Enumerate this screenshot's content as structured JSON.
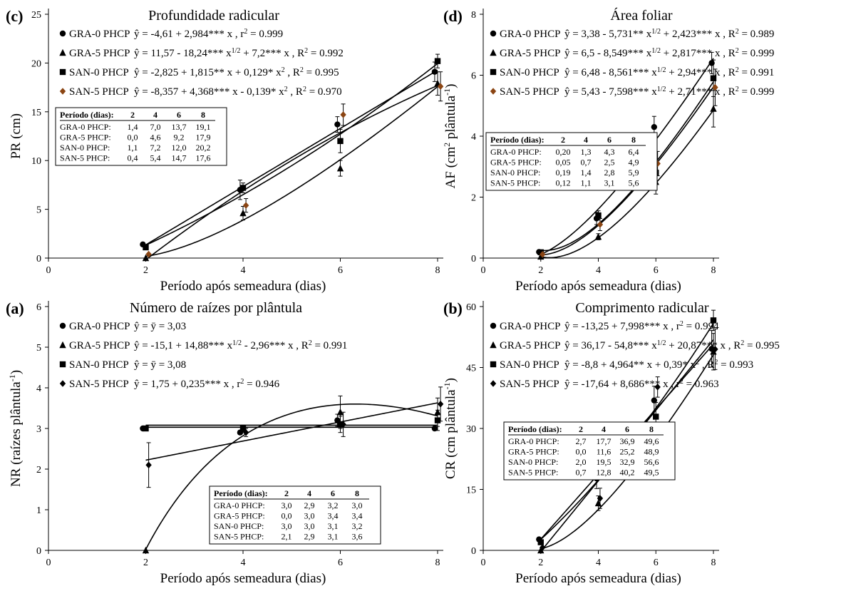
{
  "figure": {
    "xlabel": "Período após semeadura (dias)"
  },
  "chart_data": [
    {
      "id": "c",
      "panel_label": "(c)",
      "type": "scatter",
      "title": "Profundidade radicular",
      "ylabel": "PR (cm)",
      "ylabel_sup": "",
      "ylabel_tail": "",
      "xlim": [
        0,
        8
      ],
      "xticks": [
        0,
        2,
        4,
        6,
        8
      ],
      "ylim": [
        0,
        25
      ],
      "yticks": [
        0,
        5,
        10,
        15,
        20,
        25
      ],
      "x": [
        2,
        4,
        6,
        8
      ],
      "series": [
        {
          "name": "GRA-0 PHCP",
          "marker": "circle",
          "color": "#000000",
          "values": [
            1.4,
            7.0,
            13.7,
            19.1
          ],
          "err": [
            0,
            1.0,
            0.8,
            1.0
          ],
          "fit": {
            "type": "poly",
            "coef": [
              -4.61,
              2.984
            ]
          },
          "eq": [
            [
              "ŷ = -4,61 + 2,984*** x , r"
            ],
            [
              "2",
              "sup"
            ],
            [
              " = 0.999"
            ]
          ]
        },
        {
          "name": "GRA-5 PHCP",
          "marker": "triangle",
          "color": "#000000",
          "values": [
            0.0,
            4.6,
            9.2,
            17.9
          ],
          "err": [
            0,
            0.7,
            0.8,
            1.2
          ],
          "fit": {
            "type": "sqrt",
            "coef": [
              11.57,
              -18.24,
              7.2
            ]
          },
          "eq": [
            [
              "ŷ = 11,57 - 18,24*** x"
            ],
            [
              "1/2",
              "sup"
            ],
            [
              " + 7,2*** x , R"
            ],
            [
              "2",
              "sup"
            ],
            [
              " = 0.992"
            ]
          ]
        },
        {
          "name": "SAN-0 PHCP",
          "marker": "square",
          "color": "#000000",
          "values": [
            1.1,
            7.2,
            12.0,
            20.2
          ],
          "err": [
            0,
            0.5,
            1.2,
            0.7
          ],
          "fit": {
            "type": "poly",
            "coef": [
              -2.825,
              1.815,
              0.129
            ]
          },
          "eq": [
            [
              "ŷ = -2,825 + 1,815** x + 0,129* x"
            ],
            [
              "2",
              "sup"
            ],
            [
              " , R"
            ],
            [
              "2",
              "sup"
            ],
            [
              " = 0.995"
            ]
          ]
        },
        {
          "name": "SAN-5 PHCP",
          "marker": "diamond",
          "color": "#8B4513",
          "values": [
            0.4,
            5.4,
            14.7,
            17.6
          ],
          "err": [
            0,
            0.7,
            1.1,
            1.5
          ],
          "fit": {
            "type": "poly",
            "coef": [
              -8.357,
              4.368,
              -0.139
            ]
          },
          "eq": [
            [
              "ŷ = -8,357 + 4,368*** x - 0,139* x"
            ],
            [
              "2",
              "sup"
            ],
            [
              " , R"
            ],
            [
              "2",
              "sup"
            ],
            [
              " = 0.970"
            ]
          ]
        }
      ],
      "table": {
        "header": [
          "Período (dias):",
          "2",
          "4",
          "6",
          "8"
        ],
        "rows": [
          [
            "GRA-0 PHCP:",
            "1,4",
            "7,0",
            "13,7",
            "19,1"
          ],
          [
            "GRA-5 PHCP:",
            "0,0",
            "4,6",
            "9,2",
            "17,9"
          ],
          [
            "SAN-0 PHCP:",
            "1,1",
            "7,2",
            "12,0",
            "20,2"
          ],
          [
            "SAN-5 PHCP:",
            "0,4",
            "5,4",
            "14,7",
            "17,6"
          ]
        ]
      }
    },
    {
      "id": "d",
      "panel_label": "(d)",
      "type": "scatter",
      "title": "Área foliar",
      "ylabel": "AF (cm",
      "ylabel_sup": "2",
      "ylabel_tail": " plântula",
      "ylabel_sup2": "-1",
      "ylabel_end": ")",
      "xlim": [
        0,
        8
      ],
      "xticks": [
        0,
        2,
        4,
        6,
        8
      ],
      "ylim": [
        0,
        8
      ],
      "yticks": [
        0,
        2,
        4,
        6,
        8
      ],
      "x": [
        2,
        4,
        6,
        8
      ],
      "series": [
        {
          "name": "GRA-0 PHCP",
          "marker": "circle",
          "color": "#000000",
          "values": [
            0.2,
            1.3,
            4.3,
            6.4
          ],
          "err": [
            0,
            0.2,
            0.35,
            0.35
          ],
          "fit": {
            "type": "sqrt",
            "coef": [
              3.38,
              -5.731,
              2.423
            ]
          },
          "eq": [
            [
              "ŷ = 3,38 - 5,731** x"
            ],
            [
              "1/2",
              "sup"
            ],
            [
              " + 2,423*** x , R"
            ],
            [
              "2",
              "sup"
            ],
            [
              " = 0.989"
            ]
          ]
        },
        {
          "name": "GRA-5 PHCP",
          "marker": "triangle",
          "color": "#000000",
          "values": [
            0.05,
            0.7,
            2.5,
            4.9
          ],
          "err": [
            0,
            0.1,
            0.4,
            0.6
          ],
          "fit": {
            "type": "sqrt",
            "coef": [
              6.5,
              -8.549,
              2.817
            ]
          },
          "eq": [
            [
              "ŷ = 6,5 - 8,549*** x"
            ],
            [
              "1/2",
              "sup"
            ],
            [
              " + 2,817*** x , R"
            ],
            [
              "2",
              "sup"
            ],
            [
              " = 0.999"
            ]
          ]
        },
        {
          "name": "SAN-0 PHCP",
          "marker": "square",
          "color": "#000000",
          "values": [
            0.19,
            1.4,
            2.8,
            5.9
          ],
          "err": [
            0,
            0.15,
            0.35,
            0.6
          ],
          "fit": {
            "type": "sqrt",
            "coef": [
              6.48,
              -8.561,
              2.94
            ]
          },
          "eq": [
            [
              "ŷ = 6,48 - 8,561*** x"
            ],
            [
              "1/2",
              "sup"
            ],
            [
              " + 2,94*** x , R"
            ],
            [
              "2",
              "sup"
            ],
            [
              " = 0.991"
            ]
          ]
        },
        {
          "name": "SAN-5 PHCP",
          "marker": "diamond",
          "color": "#8B4513",
          "values": [
            0.12,
            1.1,
            3.1,
            5.6
          ],
          "err": [
            0,
            0.2,
            0.4,
            0.6
          ],
          "fit": {
            "type": "sqrt",
            "coef": [
              5.43,
              -7.598,
              2.71
            ]
          },
          "eq": [
            [
              "ŷ = 5,43 - 7,598*** x"
            ],
            [
              "1/2",
              "sup"
            ],
            [
              " + 2,71*** x , R"
            ],
            [
              "2",
              "sup"
            ],
            [
              " = 0.999"
            ]
          ]
        }
      ],
      "table": {
        "header": [
          "Período (dias):",
          "2",
          "4",
          "6",
          "8"
        ],
        "rows": [
          [
            "GRA-0 PHCP:",
            "0,20",
            "1,3",
            "4,3",
            "6,4"
          ],
          [
            "GRA-5 PHCP:",
            "0,05",
            "0,7",
            "2,5",
            "4,9"
          ],
          [
            "SAN-0 PHCP:",
            "0,19",
            "1,4",
            "2,8",
            "5,9"
          ],
          [
            "SAN-5 PHCP:",
            "0,12",
            "1,1",
            "3,1",
            "5,6"
          ]
        ]
      }
    },
    {
      "id": "a",
      "panel_label": "(a)",
      "type": "scatter",
      "title": "Número de raízes por plântula",
      "ylabel": "NR (raízes plântula",
      "ylabel_sup": "-1",
      "ylabel_tail": ")",
      "xlim": [
        0,
        8
      ],
      "xticks": [
        0,
        2,
        4,
        6,
        8
      ],
      "ylim": [
        0,
        6
      ],
      "yticks": [
        0,
        1,
        2,
        3,
        4,
        5,
        6
      ],
      "x": [
        2,
        4,
        6,
        8
      ],
      "series": [
        {
          "name": "GRA-0 PHCP",
          "marker": "circle",
          "color": "#000000",
          "values": [
            3.0,
            2.9,
            3.2,
            3.0
          ],
          "err": [
            0,
            0.05,
            0.15,
            0.05
          ],
          "fit": {
            "type": "poly",
            "coef": [
              3.03
            ]
          },
          "eq": [
            [
              "ŷ = ӯ = 3,03"
            ]
          ]
        },
        {
          "name": "GRA-5 PHCP",
          "marker": "triangle",
          "color": "#000000",
          "values": [
            0.0,
            3.0,
            3.4,
            3.4
          ],
          "err": [
            0,
            0.08,
            0.4,
            0.35
          ],
          "fit": {
            "type": "sqrt",
            "coef": [
              -15.1,
              14.88,
              -2.96
            ]
          },
          "eq": [
            [
              "ŷ = -15,1 + 14,88*** x"
            ],
            [
              "1/2",
              "sup"
            ],
            [
              " - 2,96*** x , R"
            ],
            [
              "2",
              "sup"
            ],
            [
              " = 0.991"
            ]
          ]
        },
        {
          "name": "SAN-0 PHCP",
          "marker": "square",
          "color": "#000000",
          "values": [
            3.0,
            3.0,
            3.1,
            3.2
          ],
          "err": [
            0,
            0.05,
            0.2,
            0.25
          ],
          "fit": {
            "type": "poly",
            "coef": [
              3.08
            ]
          },
          "eq": [
            [
              "ŷ = ӯ = 3,08"
            ]
          ]
        },
        {
          "name": "SAN-5 PHCP",
          "marker": "diamond",
          "color": "#000000",
          "values": [
            2.1,
            2.9,
            3.1,
            3.6
          ],
          "err": [
            0.55,
            0.1,
            0.3,
            0.42
          ],
          "fit": {
            "type": "poly",
            "coef": [
              1.75,
              0.235
            ]
          },
          "eq": [
            [
              "ŷ = 1,75 + 0,235*** x , r"
            ],
            [
              "2",
              "sup"
            ],
            [
              " = 0.946"
            ]
          ]
        }
      ],
      "table": {
        "header": [
          "Período (dias):",
          "2",
          "4",
          "6",
          "8"
        ],
        "rows": [
          [
            "GRA-0 PHCP:",
            "3,0",
            "2,9",
            "3,2",
            "3,0"
          ],
          [
            "GRA-5 PHCP:",
            "0,0",
            "3,0",
            "3,4",
            "3,4"
          ],
          [
            "SAN-0 PHCP:",
            "3,0",
            "3,0",
            "3,1",
            "3,2"
          ],
          [
            "SAN-5 PHCP:",
            "2,1",
            "2,9",
            "3,1",
            "3,6"
          ]
        ]
      }
    },
    {
      "id": "b",
      "panel_label": "(b)",
      "type": "scatter",
      "title": "Comprimento radicular",
      "ylabel": "CR (cm plântula",
      "ylabel_sup": "-1",
      "ylabel_tail": ")",
      "xlim": [
        0,
        8
      ],
      "xticks": [
        0,
        2,
        4,
        6,
        8
      ],
      "ylim": [
        0,
        60
      ],
      "yticks": [
        0,
        15,
        30,
        45,
        60
      ],
      "x": [
        2,
        4,
        6,
        8
      ],
      "series": [
        {
          "name": "GRA-0 PHCP",
          "marker": "circle",
          "color": "#000000",
          "values": [
            2.7,
            17.7,
            36.9,
            49.6
          ],
          "err": [
            0,
            2.5,
            3.5,
            4.5
          ],
          "fit": {
            "type": "poly",
            "coef": [
              -13.25,
              7.998
            ]
          },
          "eq": [
            [
              "ŷ = -13,25 + 7,998*** x , r"
            ],
            [
              "2",
              "sup"
            ],
            [
              " = 0.994"
            ]
          ]
        },
        {
          "name": "GRA-5 PHCP",
          "marker": "triangle",
          "color": "#000000",
          "values": [
            0.0,
            11.6,
            25.2,
            48.9
          ],
          "err": [
            0,
            1.8,
            2.2,
            4.5
          ],
          "fit": {
            "type": "sqrt",
            "coef": [
              36.17,
              -54.8,
              20.87
            ]
          },
          "eq": [
            [
              "ŷ = 36,17 - 54,8*** x"
            ],
            [
              "1/2",
              "sup"
            ],
            [
              " + 20,87*** x , R"
            ],
            [
              "2",
              "sup"
            ],
            [
              " = 0.995"
            ]
          ]
        },
        {
          "name": "SAN-0 PHCP",
          "marker": "square",
          "color": "#000000",
          "values": [
            2.0,
            19.5,
            32.9,
            56.6
          ],
          "err": [
            0,
            1.2,
            3.5,
            2.5
          ],
          "fit": {
            "type": "poly",
            "coef": [
              -8.8,
              4.964,
              0.39
            ]
          },
          "eq": [
            [
              "ŷ = -8,8 + 4,964** x + 0,39* x"
            ],
            [
              "2",
              "sup"
            ],
            [
              " , R"
            ],
            [
              "2",
              "sup"
            ],
            [
              " = 0.993"
            ]
          ]
        },
        {
          "name": "SAN-5 PHCP",
          "marker": "diamond",
          "color": "#000000",
          "values": [
            0.7,
            12.8,
            40.2,
            49.5
          ],
          "err": [
            0,
            2.5,
            2.5,
            5.0
          ],
          "fit": {
            "type": "poly",
            "coef": [
              -17.64,
              8.686
            ]
          },
          "eq": [
            [
              "ŷ = -17,64 + 8,686*** x , r"
            ],
            [
              "2",
              "sup"
            ],
            [
              " = 0.963"
            ]
          ]
        }
      ],
      "table": {
        "header": [
          "Período (dias):",
          "2",
          "4",
          "6",
          "8"
        ],
        "rows": [
          [
            "GRA-0 PHCP:",
            "2,7",
            "17,7",
            "36,9",
            "49,6"
          ],
          [
            "GRA-5 PHCP:",
            "0,0",
            "11,6",
            "25,2",
            "48,9"
          ],
          [
            "SAN-0 PHCP:",
            "2,0",
            "19,5",
            "32,9",
            "56,6"
          ],
          [
            "SAN-5 PHCP:",
            "0,7",
            "12,8",
            "40,2",
            "49,5"
          ]
        ]
      }
    }
  ]
}
